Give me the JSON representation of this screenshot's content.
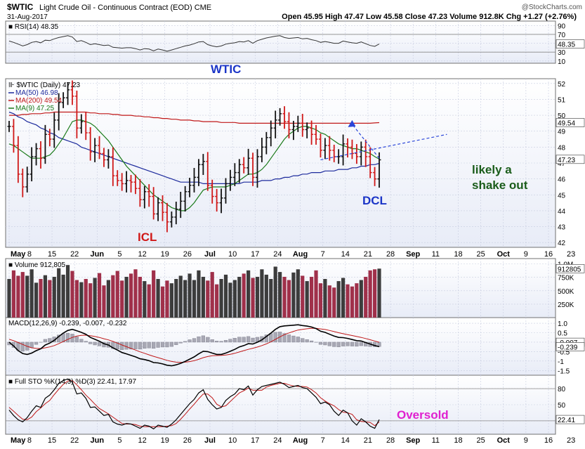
{
  "header": {
    "symbol": "$WTIC",
    "name": "Light Crude Oil - Continuous Contract (EOD)",
    "exchange": "CME",
    "date": "31-Aug-2017",
    "watermark": "@StockCharts.com",
    "ohlc": "Open 45.95  High 47.47  Low 45.58  Close 47.23  Volume 912.8K  Chg +1.27 (+2.76%)"
  },
  "annotations": {
    "wtic": "WTIC",
    "icl": "ICL",
    "dcl": "DCL",
    "likely_line1": "likely a",
    "likely_line2": "shake out",
    "oversold": "Oversold"
  },
  "colors": {
    "up": "#111111",
    "down": "#d01818",
    "ma50": "#1c2a9c",
    "ma200": "#c01818",
    "ma9": "#1a7a1a",
    "vol_up": "#3c3c3c",
    "vol_down": "#a0304a",
    "panel_bg_top": "#ffffff",
    "panel_bg_bottom": "#e8ecf7",
    "annot_blue": "#1b35c7",
    "annot_red": "#d01818",
    "annot_green": "#1a5c1a",
    "annot_magenta": "#e020d0",
    "arrow": "#2a45d8"
  },
  "chart_data": {
    "type": "candlestick",
    "x_labels": [
      "May",
      "8",
      "15",
      "22",
      "Jun",
      "5",
      "12",
      "19",
      "26",
      "Jul",
      "10",
      "17",
      "24",
      "Aug",
      "7",
      "14",
      "21",
      "28",
      "Sep",
      "11",
      "18",
      "25",
      "Oct",
      "9",
      "16",
      "23"
    ],
    "price": {
      "legend": [
        "$WTIC (Daily) 47.23",
        "MA(50) 46.98",
        "MA(200) 49.54",
        "MA(9) 47.25"
      ],
      "y_ticks": [
        42,
        43,
        44,
        45,
        46,
        47,
        48,
        49,
        50,
        51,
        52
      ],
      "ylim": [
        41.7,
        52.3
      ],
      "last_labels": {
        "ma200": "49.54",
        "close": "47.23"
      },
      "closes": [
        49.3,
        48.1,
        46.3,
        45.5,
        46.3,
        47.4,
        47.9,
        47.3,
        48.8,
        48.5,
        49.7,
        50.8,
        51.1,
        51.6,
        51.2,
        49.2,
        49.6,
        48.9,
        47.7,
        48.1,
        47.6,
        47.2,
        47.4,
        46.2,
        45.9,
        45.7,
        45.9,
        45.8,
        45.4,
        44.7,
        45.2,
        44.9,
        43.8,
        44.5,
        43.9,
        43.3,
        43.6,
        44.1,
        44.6,
        45.2,
        45.6,
        46.1,
        46.9,
        47.1,
        45.6,
        44.9,
        44.5,
        44.8,
        45.7,
        46.1,
        46.4,
        46.9,
        46.7,
        47.3,
        46.1,
        47.4,
        48.0,
        48.6,
        49.2,
        49.7,
        50.1,
        49.6,
        49.1,
        49.3,
        49.5,
        49.1,
        49.2,
        48.8,
        48.5,
        47.8,
        48.1,
        47.8,
        47.4,
        47.4,
        48.2,
        48.0,
        47.6,
        47.4,
        48.0,
        47.4,
        46.4,
        46.0,
        47.2
      ],
      "ma50": [
        50.2,
        50.1,
        49.9,
        49.8,
        49.6,
        49.5,
        49.4,
        49.2,
        49.1,
        48.9,
        48.8,
        48.6,
        48.5,
        48.4,
        48.3,
        48.2,
        48.0,
        47.9,
        47.8,
        47.7,
        47.6,
        47.5,
        47.4,
        47.3,
        47.2,
        47.1,
        47.0,
        46.9,
        46.8,
        46.7,
        46.6,
        46.5,
        46.4,
        46.3,
        46.2,
        46.1,
        46.0,
        45.9,
        45.8,
        45.8,
        45.8,
        45.8,
        45.8,
        45.7,
        45.7,
        45.7,
        45.7,
        45.7,
        45.7,
        45.7,
        45.7,
        45.7,
        45.8,
        45.8,
        45.8,
        45.8,
        45.9,
        45.9,
        45.9,
        46.0,
        46.0,
        46.1,
        46.1,
        46.2,
        46.2,
        46.3,
        46.3,
        46.4,
        46.4,
        46.4,
        46.5,
        46.5,
        46.5,
        46.6,
        46.6,
        46.6,
        46.7,
        46.7,
        46.8,
        46.8,
        46.9,
        46.9,
        46.98
      ],
      "ma200": [
        50.0,
        50.0,
        50.0,
        50.05,
        50.05,
        50.1,
        50.1,
        50.1,
        50.15,
        50.15,
        50.2,
        50.2,
        50.2,
        50.2,
        50.2,
        50.2,
        50.2,
        50.2,
        50.15,
        50.15,
        50.1,
        50.1,
        50.1,
        50.05,
        50.05,
        50.0,
        50.0,
        50.0,
        49.95,
        49.95,
        49.9,
        49.9,
        49.85,
        49.85,
        49.8,
        49.8,
        49.75,
        49.75,
        49.7,
        49.7,
        49.7,
        49.65,
        49.65,
        49.6,
        49.6,
        49.6,
        49.6,
        49.55,
        49.55,
        49.55,
        49.55,
        49.5,
        49.5,
        49.5,
        49.5,
        49.5,
        49.5,
        49.5,
        49.5,
        49.5,
        49.5,
        49.5,
        49.5,
        49.5,
        49.5,
        49.5,
        49.5,
        49.5,
        49.5,
        49.5,
        49.5,
        49.5,
        49.5,
        49.5,
        49.5,
        49.5,
        49.5,
        49.5,
        49.5,
        49.5,
        49.5,
        49.52,
        49.54
      ],
      "ma9": [
        48.2,
        48.1,
        47.9,
        47.7,
        47.5,
        47.3,
        47.3,
        47.3,
        47.4,
        47.5,
        47.8,
        48.2,
        48.6,
        49.1,
        49.6,
        49.7,
        49.7,
        49.6,
        49.5,
        49.3,
        49.0,
        48.7,
        48.4,
        48.0,
        47.6,
        47.2,
        46.8,
        46.5,
        46.2,
        45.9,
        45.6,
        45.3,
        45.0,
        44.8,
        44.6,
        44.4,
        44.2,
        44.1,
        44.0,
        44.0,
        44.2,
        44.5,
        44.9,
        45.3,
        45.4,
        45.5,
        45.5,
        45.5,
        45.5,
        45.6,
        45.7,
        45.9,
        46.1,
        46.3,
        46.3,
        46.4,
        46.6,
        46.9,
        47.3,
        47.7,
        48.1,
        48.5,
        48.8,
        49.0,
        49.2,
        49.3,
        49.3,
        49.2,
        49.1,
        48.9,
        48.8,
        48.6,
        48.4,
        48.2,
        48.1,
        48.0,
        47.9,
        47.9,
        47.8,
        47.7,
        47.6,
        47.4,
        47.25
      ],
      "trend_line": [
        [
          69,
          47.2
        ],
        [
          97,
          48.8
        ]
      ],
      "arrow_to": [
        76,
        49.7
      ]
    },
    "rsi": {
      "label": "RSI(14) 48.35",
      "y_ticks": [
        10,
        30,
        50,
        70,
        90
      ],
      "ylim": [
        5,
        100
      ],
      "last_label": "48.35",
      "values": [
        55,
        52,
        48,
        44,
        47,
        52,
        54,
        51,
        57,
        56,
        60,
        63,
        65,
        67,
        64,
        54,
        56,
        52,
        47,
        49,
        47,
        45,
        46,
        41,
        40,
        39,
        40,
        40,
        38,
        35,
        38,
        37,
        33,
        37,
        35,
        32,
        35,
        38,
        41,
        44,
        46,
        49,
        53,
        54,
        47,
        44,
        42,
        44,
        48,
        50,
        51,
        54,
        53,
        56,
        50,
        56,
        59,
        62,
        64,
        66,
        67,
        63,
        61,
        62,
        63,
        60,
        61,
        58,
        56,
        52,
        54,
        52,
        50,
        50,
        55,
        53,
        51,
        50,
        53,
        49,
        45,
        43,
        48.35
      ]
    },
    "volume": {
      "label": "Volume 912,805",
      "y_ticks": [
        250000,
        500000,
        750000,
        1000000
      ],
      "tick_labels": [
        "250K",
        "500K",
        "750K",
        "1.0M"
      ],
      "ylim": [
        0,
        1100000
      ],
      "last_label": "912805",
      "values": [
        720000,
        880000,
        780000,
        850000,
        780000,
        900000,
        650000,
        720000,
        790000,
        700000,
        760000,
        920000,
        800000,
        980000,
        870000,
        700000,
        660000,
        720000,
        640000,
        740000,
        830000,
        600000,
        700000,
        790000,
        870000,
        690000,
        760000,
        820000,
        900000,
        760000,
        680000,
        620000,
        880000,
        720000,
        580000,
        690000,
        640000,
        720000,
        780000,
        700000,
        820000,
        700000,
        880000,
        760000,
        690000,
        850000,
        620000,
        720000,
        800000,
        650000,
        700000,
        760000,
        820000,
        880000,
        740000,
        760000,
        900000,
        800000,
        720000,
        950000,
        850000,
        760000,
        700000,
        840000,
        900000,
        780000,
        680000,
        760000,
        880000,
        640000,
        720000,
        600000,
        560000,
        680000,
        740000,
        620000,
        580000,
        640000,
        700000,
        760000,
        880000,
        900000,
        912805
      ]
    },
    "macd": {
      "label": "MACD(12,26,9) -0.239, -0.007, -0.232",
      "y_ticks": [
        -1.5,
        -1.0,
        -0.5,
        0.0,
        0.5,
        1.0
      ],
      "tick_labels": [
        "-1.5",
        "-1",
        "-0.5",
        "0.0",
        "0.5",
        "1.0"
      ],
      "ylim": [
        -1.75,
        1.3
      ],
      "last_labels": {
        "signal": "-0.007",
        "macd": "-0.239"
      },
      "macd": [
        0.0,
        -0.2,
        -0.45,
        -0.6,
        -0.65,
        -0.58,
        -0.45,
        -0.35,
        -0.15,
        -0.05,
        0.1,
        0.3,
        0.48,
        0.62,
        0.68,
        0.6,
        0.52,
        0.42,
        0.25,
        0.15,
        0.05,
        -0.08,
        -0.15,
        -0.3,
        -0.42,
        -0.55,
        -0.62,
        -0.7,
        -0.78,
        -0.88,
        -0.92,
        -0.98,
        -1.08,
        -1.1,
        -1.15,
        -1.22,
        -1.25,
        -1.2,
        -1.12,
        -1.02,
        -0.9,
        -0.78,
        -0.62,
        -0.48,
        -0.5,
        -0.58,
        -0.65,
        -0.65,
        -0.58,
        -0.48,
        -0.38,
        -0.25,
        -0.18,
        -0.08,
        -0.1,
        0.0,
        0.12,
        0.3,
        0.48,
        0.68,
        0.82,
        0.86,
        0.88,
        0.9,
        0.92,
        0.88,
        0.85,
        0.8,
        0.72,
        0.58,
        0.52,
        0.42,
        0.32,
        0.25,
        0.24,
        0.2,
        0.14,
        0.08,
        0.06,
        -0.02,
        -0.1,
        -0.18,
        -0.239
      ],
      "signal": [
        0.15,
        0.08,
        -0.02,
        -0.12,
        -0.22,
        -0.3,
        -0.33,
        -0.34,
        -0.3,
        -0.25,
        -0.18,
        -0.08,
        0.03,
        0.15,
        0.25,
        0.32,
        0.36,
        0.37,
        0.34,
        0.3,
        0.25,
        0.18,
        0.12,
        0.04,
        -0.05,
        -0.15,
        -0.24,
        -0.33,
        -0.42,
        -0.51,
        -0.59,
        -0.67,
        -0.75,
        -0.82,
        -0.89,
        -0.96,
        -1.02,
        -1.06,
        -1.07,
        -1.06,
        -1.03,
        -0.98,
        -0.91,
        -0.82,
        -0.76,
        -0.72,
        -0.71,
        -0.7,
        -0.68,
        -0.64,
        -0.59,
        -0.52,
        -0.45,
        -0.38,
        -0.32,
        -0.26,
        -0.18,
        -0.09,
        0.02,
        0.15,
        0.28,
        0.4,
        0.49,
        0.57,
        0.64,
        0.68,
        0.71,
        0.73,
        0.73,
        0.7,
        0.67,
        0.62,
        0.56,
        0.5,
        0.45,
        0.4,
        0.35,
        0.3,
        0.25,
        0.19,
        0.13,
        0.06,
        -0.007
      ]
    },
    "sto": {
      "label": "Full STO %K(14,3) %D(3) 22.41, 17.97",
      "y_ticks": [
        20,
        50,
        80
      ],
      "ylim": [
        -5,
        105
      ],
      "last_labels": {
        "k": "22.41",
        "d": "17.97"
      },
      "k": [
        40,
        30,
        22,
        18,
        26,
        38,
        48,
        45,
        62,
        68,
        78,
        90,
        95,
        98,
        92,
        70,
        72,
        62,
        45,
        46,
        38,
        30,
        32,
        18,
        14,
        12,
        15,
        14,
        10,
        6,
        12,
        10,
        5,
        12,
        10,
        8,
        14,
        22,
        32,
        42,
        52,
        60,
        72,
        78,
        60,
        50,
        42,
        45,
        58,
        65,
        70,
        80,
        78,
        85,
        68,
        78,
        84,
        86,
        88,
        90,
        92,
        88,
        82,
        84,
        86,
        82,
        80,
        72,
        64,
        52,
        55,
        50,
        38,
        30,
        40,
        35,
        20,
        12,
        24,
        18,
        10,
        6,
        22.41
      ],
      "d": [
        45,
        38,
        30,
        23,
        22,
        27,
        37,
        44,
        52,
        58,
        69,
        79,
        88,
        94,
        95,
        87,
        78,
        68,
        60,
        51,
        43,
        38,
        33,
        27,
        21,
        15,
        14,
        14,
        13,
        10,
        9,
        9,
        9,
        9,
        9,
        10,
        11,
        15,
        23,
        32,
        42,
        51,
        61,
        70,
        70,
        63,
        51,
        46,
        48,
        56,
        64,
        72,
        76,
        81,
        77,
        77,
        77,
        83,
        86,
        88,
        90,
        90,
        87,
        85,
        84,
        84,
        83,
        78,
        72,
        63,
        57,
        52,
        48,
        41,
        36,
        35,
        32,
        22,
        19,
        18,
        17,
        11,
        17.97
      ]
    }
  }
}
